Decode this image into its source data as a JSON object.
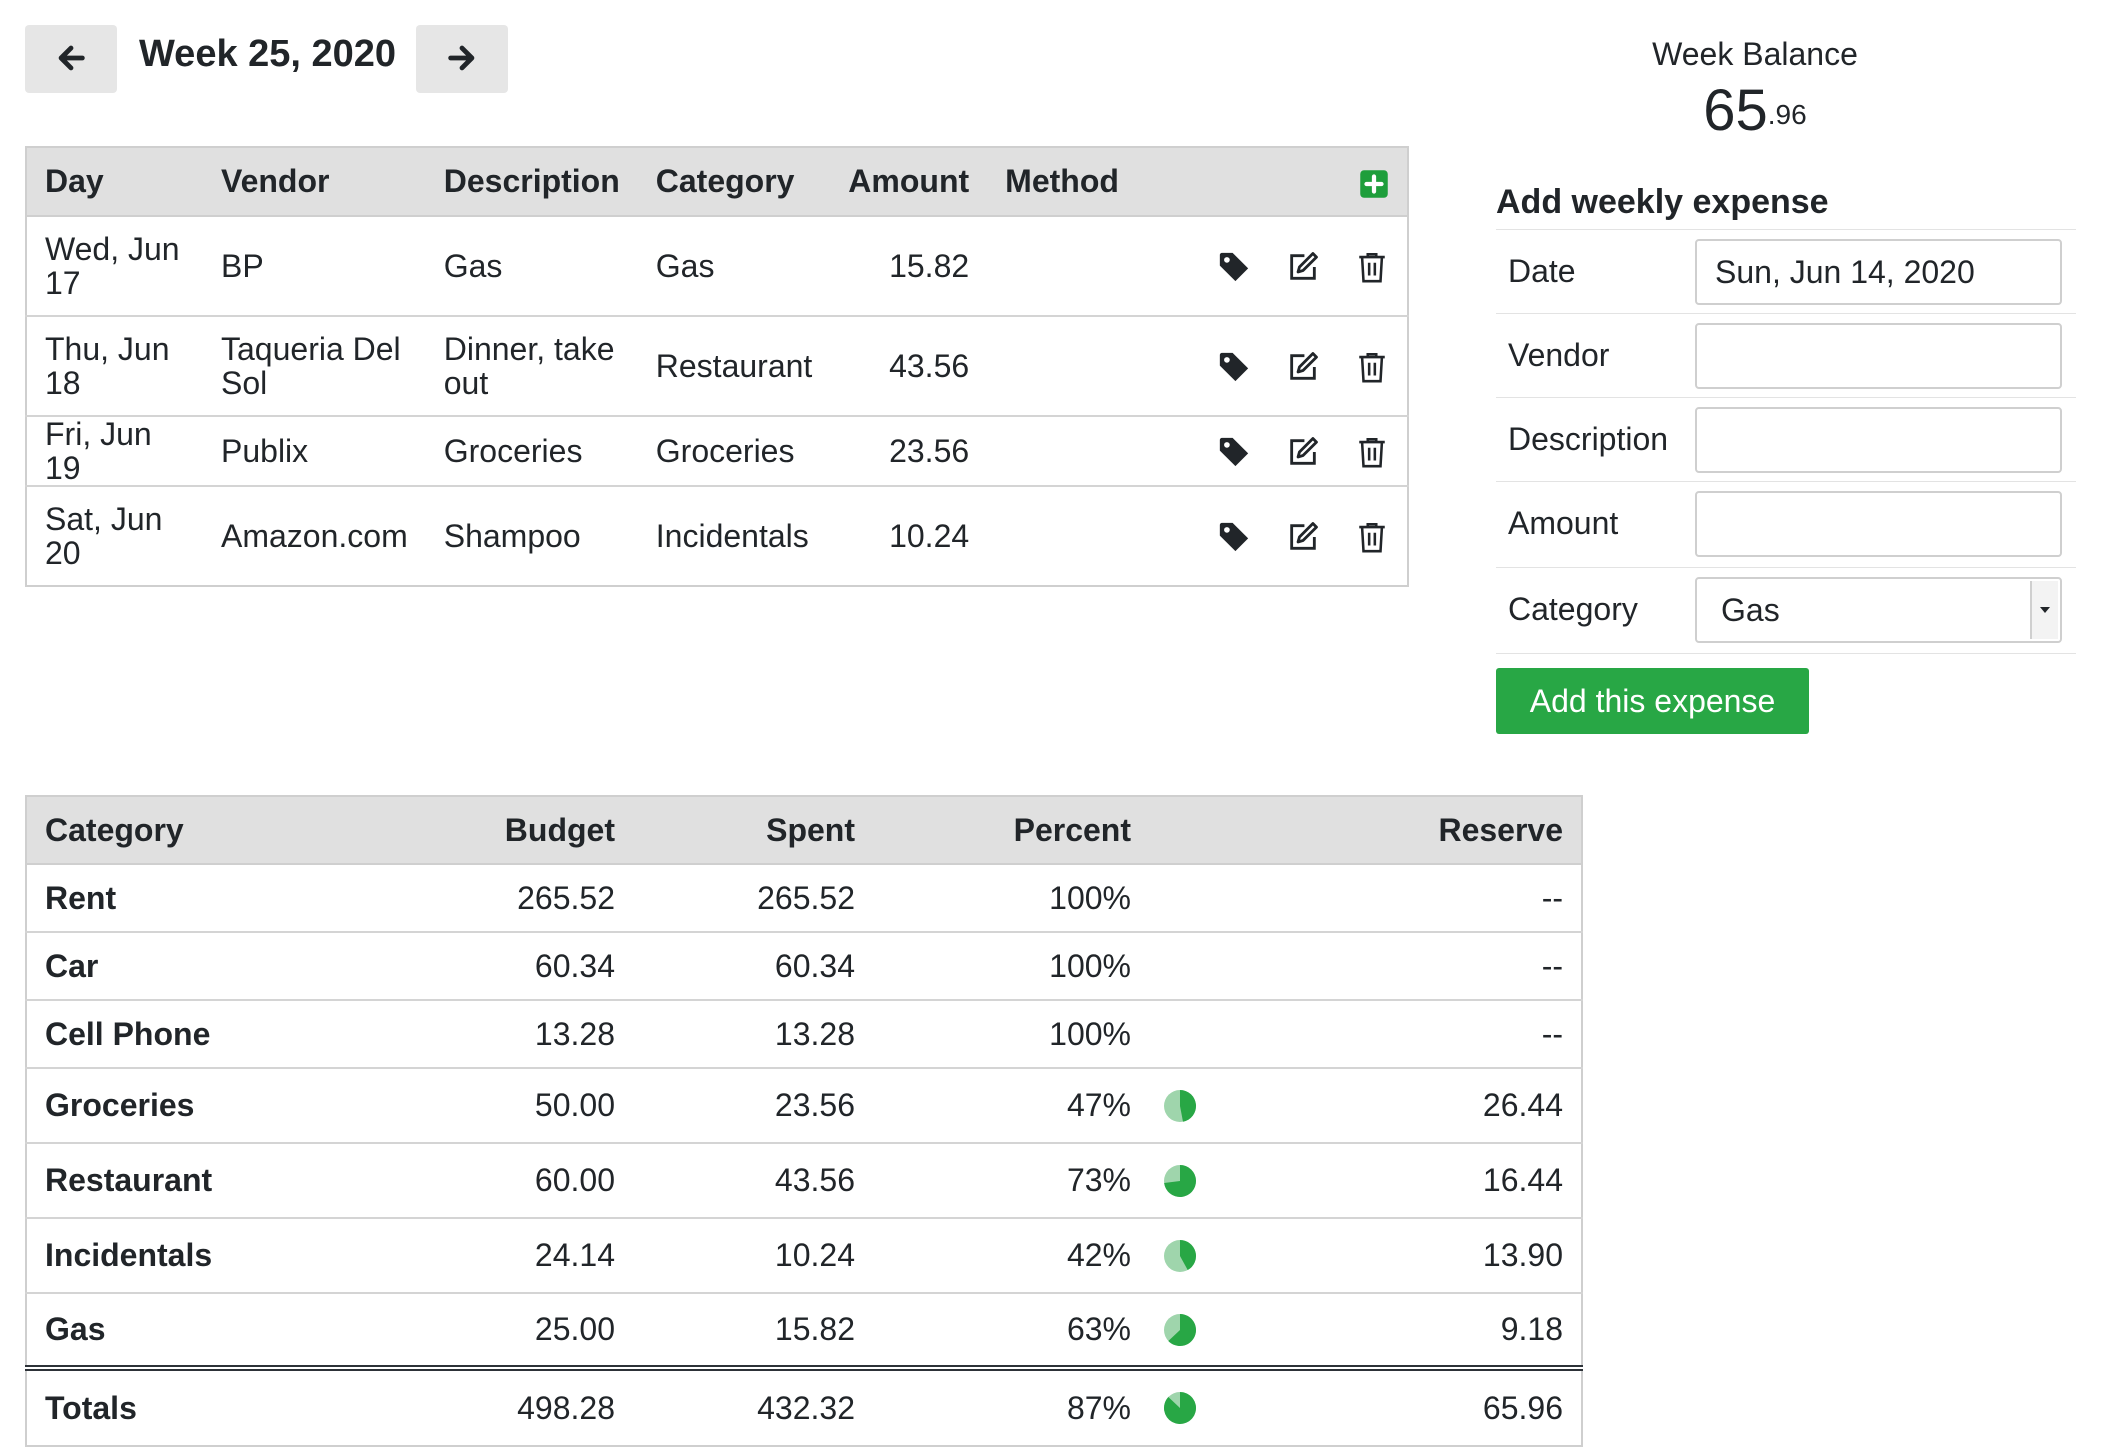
{
  "week_nav": {
    "title": "Week 25, 2020",
    "prev_icon": "arrow-left-icon",
    "next_icon": "arrow-right-icon"
  },
  "balance": {
    "label": "Week Balance",
    "whole": "65",
    "cents": ".96"
  },
  "expenses": {
    "headers": {
      "day": "Day",
      "vendor": "Vendor",
      "description": "Description",
      "category": "Category",
      "amount": "Amount",
      "method": "Method"
    },
    "add_icon": "plus-square-icon",
    "rows": [
      {
        "day": "Wed, Jun 17",
        "vendor": "BP",
        "description": "Gas",
        "category": "Gas",
        "amount": "15.82",
        "method": ""
      },
      {
        "day": "Thu, Jun 18",
        "vendor": "Taqueria Del Sol",
        "description": "Dinner, take out",
        "category": "Restaurant",
        "amount": "43.56",
        "method": ""
      },
      {
        "day": "Fri, Jun 19",
        "vendor": "Publix",
        "description": "Groceries",
        "category": "Groceries",
        "amount": "23.56",
        "method": ""
      },
      {
        "day": "Sat, Jun 20",
        "vendor": "Amazon.com",
        "description": "Shampoo",
        "category": "Incidentals",
        "amount": "10.24",
        "method": ""
      }
    ],
    "row_icons": [
      "tag-icon",
      "edit-icon",
      "trash-icon"
    ]
  },
  "add_form": {
    "title": "Add weekly expense",
    "date_label": "Date",
    "date_value": "Sun, Jun 14, 2020",
    "vendor_label": "Vendor",
    "vendor_value": "",
    "description_label": "Description",
    "description_value": "",
    "amount_label": "Amount",
    "amount_value": "",
    "category_label": "Category",
    "category_value": "Gas",
    "submit_label": "Add this expense"
  },
  "budget": {
    "headers": {
      "category": "Category",
      "budget": "Budget",
      "spent": "Spent",
      "percent": "Percent",
      "reserve": "Reserve"
    },
    "rows": [
      {
        "category": "Rent",
        "budget": "265.52",
        "spent": "265.52",
        "percent": "100%",
        "fraction": 1.0,
        "reserve": "--"
      },
      {
        "category": "Car",
        "budget": "60.34",
        "spent": "60.34",
        "percent": "100%",
        "fraction": 1.0,
        "reserve": "--"
      },
      {
        "category": "Cell Phone",
        "budget": "13.28",
        "spent": "13.28",
        "percent": "100%",
        "fraction": 1.0,
        "reserve": "--"
      },
      {
        "category": "Groceries",
        "budget": "50.00",
        "spent": "23.56",
        "percent": "47%",
        "fraction": 0.47,
        "reserve": "26.44"
      },
      {
        "category": "Restaurant",
        "budget": "60.00",
        "spent": "43.56",
        "percent": "73%",
        "fraction": 0.73,
        "reserve": "16.44"
      },
      {
        "category": "Incidentals",
        "budget": "24.14",
        "spent": "10.24",
        "percent": "42%",
        "fraction": 0.42,
        "reserve": "13.90"
      },
      {
        "category": "Gas",
        "budget": "25.00",
        "spent": "15.82",
        "percent": "63%",
        "fraction": 0.63,
        "reserve": "9.18"
      }
    ],
    "totals": {
      "label": "Totals",
      "budget": "498.28",
      "spent": "432.32",
      "percent": "87%",
      "fraction": 0.87,
      "reserve": "65.96"
    },
    "pie_colors": {
      "filled": "#28a745",
      "empty": "#9fd5ac"
    }
  },
  "colors": {
    "accent_green": "#28a745",
    "header_gray": "#e0e0e0"
  }
}
